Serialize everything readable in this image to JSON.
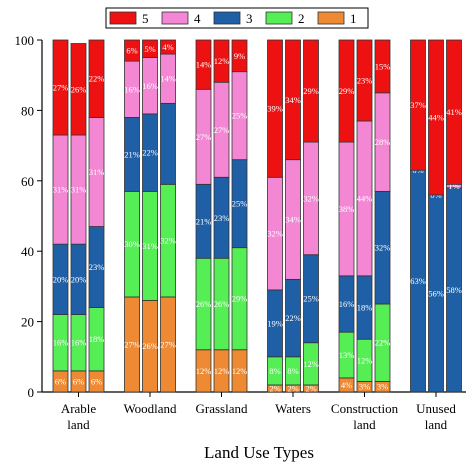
{
  "chart_data": {
    "type": "bar",
    "stacked": true,
    "title": "",
    "xlabel": "Land Use Types",
    "ylabel": "",
    "ylim": [
      0,
      100
    ],
    "yticks": [
      0,
      20,
      40,
      60,
      80,
      100
    ],
    "grid": false,
    "legend_position": "top",
    "legend_order": [
      "5",
      "4",
      "3",
      "2",
      "1"
    ],
    "level_colors": {
      "1": "#ee8a33",
      "2": "#55ee55",
      "3": "#1f5fa6",
      "4": "#f387d4",
      "5": "#ee1111"
    },
    "groups": [
      {
        "category": [
          "Arable",
          "land"
        ],
        "bars": [
          {
            "values": [
              6,
              16,
              20,
              31,
              27
            ],
            "labels": [
              "6%",
              "16%",
              "20%",
              "31%",
              "27%"
            ]
          },
          {
            "values": [
              6,
              16,
              20,
              31,
              26
            ],
            "labels": [
              "6%",
              "16%",
              "20%",
              "31%",
              "26%"
            ]
          },
          {
            "values": [
              6,
              18,
              23,
              31,
              22
            ],
            "labels": [
              "6%",
              "18%",
              "23%",
              "31%",
              "22%"
            ]
          }
        ]
      },
      {
        "category": [
          "Woodland"
        ],
        "bars": [
          {
            "values": [
              27,
              30,
              21,
              16,
              6
            ],
            "labels": [
              "27%",
              "30%",
              "21%",
              "16%",
              "6%"
            ]
          },
          {
            "values": [
              26,
              31,
              22,
              16,
              5
            ],
            "labels": [
              "26%",
              "31%",
              "22%",
              "16%",
              "5%"
            ]
          },
          {
            "values": [
              27,
              32,
              23,
              14,
              4
            ],
            "labels": [
              "27%",
              "32%",
              "",
              "14%",
              "4%"
            ]
          }
        ]
      },
      {
        "category": [
          "Grassland"
        ],
        "bars": [
          {
            "values": [
              12,
              26,
              21,
              27,
              14
            ],
            "labels": [
              "12%",
              "26%",
              "21%",
              "27%",
              "14%"
            ]
          },
          {
            "values": [
              12,
              26,
              23,
              27,
              12
            ],
            "labels": [
              "12%",
              "26%",
              "23%",
              "27%",
              "12%"
            ]
          },
          {
            "values": [
              12,
              29,
              25,
              25,
              9
            ],
            "labels": [
              "12%",
              "29%",
              "25%",
              "25%",
              "9%"
            ]
          }
        ]
      },
      {
        "category": [
          "Waters"
        ],
        "bars": [
          {
            "values": [
              2,
              8,
              19,
              32,
              39
            ],
            "labels": [
              "2%",
              "8%",
              "19%",
              "32%",
              "39%"
            ]
          },
          {
            "values": [
              2,
              8,
              22,
              34,
              34
            ],
            "labels": [
              "2%",
              "8%",
              "22%",
              "34%",
              "34%"
            ]
          },
          {
            "values": [
              2,
              12,
              25,
              32,
              29
            ],
            "labels": [
              "2%",
              "12%",
              "25%",
              "32%",
              "29%"
            ]
          }
        ]
      },
      {
        "category": [
          "Construction",
          "land"
        ],
        "bars": [
          {
            "values": [
              4,
              13,
              16,
              38,
              29
            ],
            "labels": [
              "4%",
              "13%",
              "16%",
              "38%",
              "29%"
            ]
          },
          {
            "values": [
              3,
              12,
              18,
              44,
              23
            ],
            "labels": [
              "3%",
              "12%",
              "18%",
              "44%",
              "23%"
            ]
          },
          {
            "values": [
              3,
              22,
              32,
              28,
              15
            ],
            "labels": [
              "3%",
              "22%",
              "32%",
              "28%",
              "15%"
            ]
          }
        ]
      },
      {
        "category": [
          "Unused",
          "land"
        ],
        "bars": [
          {
            "values": [
              0,
              0,
              63,
              0,
              37
            ],
            "labels": [
              "",
              "",
              "63%",
              "0%",
              "37%"
            ]
          },
          {
            "values": [
              0,
              0,
              56,
              0,
              44
            ],
            "labels": [
              "",
              "",
              "56%",
              "0%",
              "44%"
            ]
          },
          {
            "values": [
              0,
              0,
              58,
              1,
              41
            ],
            "labels": [
              "",
              "",
              "58%",
              "1%",
              "41%"
            ]
          }
        ]
      }
    ]
  }
}
